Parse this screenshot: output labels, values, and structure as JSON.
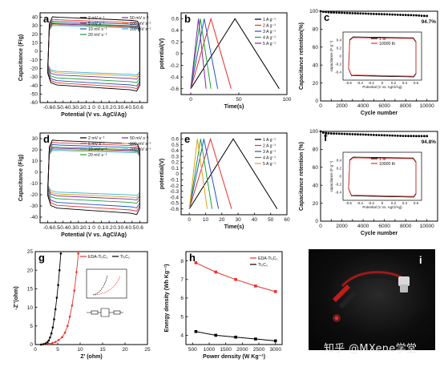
{
  "chart_data": [
    {
      "id": "a",
      "panel_label": "a",
      "type": "line",
      "xlabel": "Potential (V vs. AgCl/Ag)",
      "ylabel": "Capacitance (F/g)",
      "xlim": [
        -0.7,
        0.7
      ],
      "ylim": [
        -60,
        45
      ],
      "xticks": [
        -0.6,
        -0.5,
        -0.4,
        -0.3,
        -0.2,
        -0.1,
        0.0,
        0.1,
        0.2,
        0.3,
        0.4,
        0.5,
        0.6
      ],
      "yticks": [
        -60,
        -50,
        -40,
        -30,
        -20,
        -10,
        0,
        10,
        20,
        30,
        40
      ],
      "legend": [
        "2 mV s⁻¹",
        "5 mV s⁻¹",
        "10 mV s⁻¹",
        "20 mV s⁻¹",
        "50 mV s⁻¹",
        "100 mV s⁻¹",
        "200 mV s⁻¹"
      ],
      "series": [
        {
          "name": "2 mV s⁻¹",
          "color": "#000000",
          "values": {
            "top": 41,
            "bottom": -47,
            "corner": 12
          }
        },
        {
          "name": "5 mV s⁻¹",
          "color": "#e8322b",
          "values": {
            "top": 38,
            "bottom": -44,
            "corner": 11
          }
        },
        {
          "name": "10 mV s⁻¹",
          "color": "#2350c8",
          "values": {
            "top": 36,
            "bottom": -41,
            "corner": 10
          }
        },
        {
          "name": "20 mV s⁻¹",
          "color": "#1b9e3a",
          "values": {
            "top": 34,
            "bottom": -37,
            "corner": 9
          }
        },
        {
          "name": "50 mV s⁻¹",
          "color": "#7b2a9c",
          "values": {
            "top": 33,
            "bottom": -33,
            "corner": 8
          }
        },
        {
          "name": "100 mV s⁻¹",
          "color": "#d9a31a",
          "values": {
            "top": 32,
            "bottom": -30,
            "corner": 6
          }
        },
        {
          "name": "200 mV s⁻¹",
          "color": "#37b6d9",
          "values": {
            "top": 31,
            "bottom": -28,
            "corner": 4
          }
        }
      ]
    },
    {
      "id": "b",
      "panel_label": "b",
      "type": "line",
      "xlabel": "Time(s)",
      "ylabel": "potential(V)",
      "xlim": [
        -10,
        100
      ],
      "ylim": [
        -0.7,
        0.7
      ],
      "xticks": [
        0,
        50,
        100
      ],
      "yticks": [
        -0.6,
        -0.4,
        -0.2,
        0.0,
        0.2,
        0.4,
        0.6
      ],
      "legend": [
        "1 A g⁻¹",
        "2 A g⁻¹",
        "3 A g⁻¹",
        "4 A g⁻¹",
        "5 A g⁻¹"
      ],
      "series": [
        {
          "name": "1 A g⁻¹",
          "color": "#000000",
          "x": [
            0,
            46,
            92
          ],
          "y": [
            -0.6,
            0.6,
            -0.6
          ]
        },
        {
          "name": "2 A g⁻¹",
          "color": "#e8322b",
          "x": [
            0,
            21,
            42
          ],
          "y": [
            -0.6,
            0.6,
            -0.6
          ]
        },
        {
          "name": "3 A g⁻¹",
          "color": "#2350c8",
          "x": [
            0,
            14,
            28
          ],
          "y": [
            -0.6,
            0.6,
            -0.6
          ]
        },
        {
          "name": "4 A g⁻¹",
          "color": "#1b9e3a",
          "x": [
            0,
            10,
            21
          ],
          "y": [
            -0.6,
            0.6,
            -0.6
          ]
        },
        {
          "name": "5 A g⁻¹",
          "color": "#7b2a9c",
          "x": [
            0,
            8,
            16
          ],
          "y": [
            -0.6,
            0.6,
            -0.6
          ]
        }
      ]
    },
    {
      "id": "c",
      "panel_label": "c",
      "type": "scatter",
      "xlabel": "Cycle number",
      "ylabel": "Capacitance retention(%)",
      "xlim": [
        0,
        11000
      ],
      "ylim": [
        0,
        100
      ],
      "xticks": [
        0,
        1000,
        2000,
        3000,
        4000,
        5000,
        6000,
        7000,
        8000,
        9000,
        10000
      ],
      "yticks": [
        0,
        20,
        40,
        60,
        80,
        100
      ],
      "annotation": "94.7%",
      "series": [
        {
          "name": "retention",
          "color": "#000000",
          "x": [
            0,
            250,
            500,
            750,
            1000,
            1250,
            1500,
            1750,
            2000,
            2250,
            2500,
            2750,
            3000,
            3250,
            3500,
            3750,
            4000,
            4250,
            4500,
            4750,
            5000,
            5250,
            5500,
            5750,
            6000,
            6250,
            6500,
            6750,
            7000,
            7250,
            7500,
            7750,
            8000,
            8250,
            8500,
            8750,
            9000,
            9250,
            9500,
            9750,
            10000
          ],
          "y": [
            100,
            99.3,
            99.1,
            98.8,
            98.6,
            98.6,
            98.4,
            98.3,
            98.2,
            98.1,
            98.0,
            97.9,
            97.8,
            97.7,
            97.6,
            97.5,
            97.4,
            97.3,
            97.2,
            97.1,
            97.0,
            96.9,
            96.8,
            96.7,
            96.6,
            96.5,
            96.4,
            96.3,
            96.2,
            96.1,
            96.0,
            95.9,
            95.8,
            95.7,
            95.6,
            95.5,
            95.4,
            95.2,
            95.0,
            94.8,
            94.7
          ]
        }
      ],
      "inset": {
        "xlabel": "Potential (V vs. AgCl/Ag)",
        "ylabel": "capacitance (F g⁻¹)",
        "xlim": [
          -0.7,
          0.7
        ],
        "ylim": [
          -0.6,
          0.6
        ],
        "xticks": [
          -0.6,
          -0.4,
          -0.2,
          0.0,
          0.2,
          0.4,
          0.6
        ],
        "yticks": [
          -0.4,
          -0.2,
          0.0,
          0.2,
          0.4
        ],
        "legend": [
          "1 st",
          "10000 th"
        ],
        "series": [
          {
            "name": "1 st",
            "color": "#000000",
            "values": {
              "top": 0.48,
              "bottom": -0.52
            }
          },
          {
            "name": "10000 th",
            "color": "#e8322b",
            "values": {
              "top": 0.46,
              "bottom": -0.5
            }
          }
        ]
      }
    },
    {
      "id": "d",
      "panel_label": "d",
      "type": "line",
      "xlabel": "Potential (V vs. AgCl/Ag)",
      "ylabel": "Capacitance (F/g)",
      "xlim": [
        -0.7,
        0.7
      ],
      "ylim": [
        -45,
        35
      ],
      "xticks": [
        -0.6,
        -0.5,
        -0.4,
        -0.3,
        -0.2,
        -0.1,
        0.0,
        0.1,
        0.2,
        0.3,
        0.4,
        0.5,
        0.6
      ],
      "yticks": [
        -40,
        -30,
        -20,
        -10,
        0,
        10,
        20,
        30
      ],
      "legend": [
        "2 mV s⁻¹",
        "5 mV s⁻¹",
        "10 mV s⁻¹",
        "20 mV s⁻¹",
        "50 mV s⁻¹",
        "100 mV s⁻¹",
        "200 mV s⁻¹"
      ],
      "series": [
        {
          "name": "2 mV s⁻¹",
          "color": "#000000",
          "values": {
            "top": 29,
            "bottom": -38,
            "corner": 10
          }
        },
        {
          "name": "5 mV s⁻¹",
          "color": "#e8322b",
          "values": {
            "top": 27,
            "bottom": -35,
            "corner": 9
          }
        },
        {
          "name": "10 mV s⁻¹",
          "color": "#2350c8",
          "values": {
            "top": 25,
            "bottom": -32,
            "corner": 8
          }
        },
        {
          "name": "20 mV s⁻¹",
          "color": "#1b9e3a",
          "values": {
            "top": 23,
            "bottom": -28,
            "corner": 7
          }
        },
        {
          "name": "50 mV s⁻¹",
          "color": "#7b2a9c",
          "values": {
            "top": 22,
            "bottom": -25,
            "corner": 6
          }
        },
        {
          "name": "100 mV s⁻¹",
          "color": "#d9a31a",
          "values": {
            "top": 21,
            "bottom": -23,
            "corner": 5
          }
        },
        {
          "name": "200 mV s⁻¹",
          "color": "#37b6d9",
          "values": {
            "top": 20,
            "bottom": -21,
            "corner": 4
          }
        }
      ]
    },
    {
      "id": "e",
      "panel_label": "e",
      "type": "line",
      "xlabel": "Time(s)",
      "ylabel": "potential(V)",
      "xlim": [
        -5,
        60
      ],
      "ylim": [
        -0.7,
        0.7
      ],
      "xticks": [
        0,
        10,
        20,
        30,
        40,
        50,
        60
      ],
      "yticks": [
        -0.6,
        -0.5,
        -0.4,
        -0.3,
        -0.2,
        -0.1,
        0.0,
        0.1,
        0.2,
        0.3,
        0.4,
        0.5,
        0.6
      ],
      "legend": [
        "1 A g⁻¹",
        "2 A g⁻¹",
        "3 A g⁻¹",
        "4 A g⁻¹",
        "5 A g⁻¹"
      ],
      "series": [
        {
          "name": "1 A g⁻¹",
          "color": "#000000",
          "x": [
            0,
            27,
            54
          ],
          "y": [
            -0.6,
            0.6,
            -0.6
          ]
        },
        {
          "name": "2 A g⁻¹",
          "color": "#e8322b",
          "x": [
            0,
            13,
            26
          ],
          "y": [
            -0.6,
            0.6,
            -0.6
          ]
        },
        {
          "name": "3 A g⁻¹",
          "color": "#2350c8",
          "x": [
            0,
            9,
            18
          ],
          "y": [
            -0.6,
            0.6,
            -0.6
          ]
        },
        {
          "name": "4 A g⁻¹",
          "color": "#1b9e3a",
          "x": [
            0,
            7,
            14
          ],
          "y": [
            -0.6,
            0.6,
            -0.6
          ]
        },
        {
          "name": "5 A g⁻¹",
          "color": "#d9a31a",
          "x": [
            0,
            5,
            11
          ],
          "y": [
            -0.6,
            0.6,
            -0.6
          ]
        }
      ]
    },
    {
      "id": "f",
      "panel_label": "f",
      "type": "scatter",
      "xlabel": "Cycle number",
      "ylabel": "Capacitance retention (%)",
      "xlim": [
        0,
        11000
      ],
      "ylim": [
        0,
        100
      ],
      "xticks": [
        0,
        1000,
        2000,
        3000,
        4000,
        5000,
        6000,
        7000,
        8000,
        9000,
        10000
      ],
      "yticks": [
        0,
        20,
        40,
        60,
        80,
        100
      ],
      "annotation": "94.8%",
      "series": [
        {
          "name": "retention",
          "color": "#000000",
          "x": [
            0,
            250,
            500,
            750,
            1000,
            1250,
            1500,
            1750,
            2000,
            2250,
            2500,
            2750,
            3000,
            3250,
            3500,
            3750,
            4000,
            4250,
            4500,
            4750,
            5000,
            5250,
            5500,
            5750,
            6000,
            6250,
            6500,
            6750,
            7000,
            7250,
            7500,
            7750,
            8000,
            8250,
            8500,
            8750,
            9000,
            9250,
            9500,
            9750,
            10000
          ],
          "y": [
            100,
            98.5,
            98.2,
            97.9,
            97.7,
            97.6,
            97.5,
            97.4,
            97.3,
            97.2,
            97.1,
            97.0,
            96.9,
            96.8,
            96.7,
            96.6,
            96.5,
            96.4,
            96.3,
            96.2,
            96.1,
            96.0,
            95.9,
            95.8,
            95.7,
            95.6,
            95.5,
            95.4,
            95.3,
            95.2,
            95.1,
            95.0,
            95.0,
            94.9,
            94.9,
            94.9,
            94.8,
            94.8,
            94.8,
            94.8,
            94.8
          ]
        }
      ],
      "inset": {
        "xlabel": "Potential (V vs. AgCl/Ag)",
        "ylabel": "capacitance (F g⁻¹)",
        "xlim": [
          -0.7,
          0.7
        ],
        "ylim": [
          -0.6,
          0.6
        ],
        "xticks": [
          -0.6,
          -0.4,
          -0.2,
          0.0,
          0.2,
          0.4,
          0.6
        ],
        "yticks": [
          -0.4,
          -0.2,
          0.0,
          0.2,
          0.4
        ],
        "legend": [
          "1 st",
          "10000 th"
        ],
        "series": [
          {
            "name": "1 st",
            "color": "#000000",
            "values": {
              "top": 0.48,
              "bottom": -0.52
            }
          },
          {
            "name": "10000 th",
            "color": "#e8322b",
            "values": {
              "top": 0.46,
              "bottom": -0.5
            }
          }
        ]
      }
    },
    {
      "id": "g",
      "panel_label": "g",
      "type": "line",
      "xlabel": "Z' (ohm)",
      "ylabel": "-Z''(ohm)",
      "xlim": [
        0,
        25
      ],
      "ylim": [
        0,
        25
      ],
      "xticks": [
        0,
        5,
        10,
        15,
        20,
        25
      ],
      "yticks": [
        0,
        5,
        10,
        15,
        20,
        25
      ],
      "legend": [
        "EDA-Ti₃C₂",
        "Ti₃C₂"
      ],
      "series": [
        {
          "name": "EDA-Ti₃C₂",
          "color": "#e8322b",
          "x": [
            1.3,
            2.2,
            3.0,
            3.8,
            4.5,
            5.2,
            6.0,
            6.6,
            7.2,
            7.7,
            8.2,
            8.7,
            9.2,
            9.6
          ],
          "y": [
            0.0,
            0.1,
            0.2,
            0.4,
            0.7,
            1.2,
            2.0,
            3.2,
            5.0,
            7.5,
            10.5,
            14.5,
            19.5,
            24.5
          ]
        },
        {
          "name": "Ti₃C₂",
          "color": "#000000",
          "x": [
            1.3,
            1.8,
            2.3,
            2.7,
            3.0,
            3.3,
            3.6,
            3.9,
            4.2,
            4.5,
            4.8,
            5.1,
            5.4,
            5.7
          ],
          "y": [
            0.0,
            0.1,
            0.3,
            0.6,
            1.1,
            1.9,
            3.0,
            4.6,
            6.8,
            9.5,
            12.6,
            16.0,
            20.0,
            24.5
          ]
        }
      ]
    },
    {
      "id": "h",
      "panel_label": "h",
      "type": "line",
      "xlabel": "Power density (W Kg⁻¹)",
      "ylabel": "Energy density (Wh Kg⁻¹)",
      "xlim": [
        300,
        3200
      ],
      "ylim": [
        3.5,
        8.5
      ],
      "xticks": [
        500,
        1000,
        1500,
        2000,
        2500,
        3000
      ],
      "yticks": [
        4,
        5,
        6,
        7,
        8
      ],
      "legend": [
        "EDA-Ti₃C₂",
        "Ti₃C₂"
      ],
      "series": [
        {
          "name": "EDA-Ti₃C₂",
          "color": "#e8322b",
          "x": [
            600,
            1200,
            1800,
            2400,
            3000
          ],
          "y": [
            7.9,
            7.4,
            7.0,
            6.65,
            6.35
          ]
        },
        {
          "name": "Ti₃C₂",
          "color": "#000000",
          "x": [
            600,
            1200,
            1800,
            2400,
            3000
          ],
          "y": [
            4.2,
            4.0,
            3.9,
            3.8,
            3.7
          ]
        }
      ]
    }
  ],
  "photo": {
    "panel_label": "i"
  },
  "watermark": "知乎 @MXene学堂"
}
